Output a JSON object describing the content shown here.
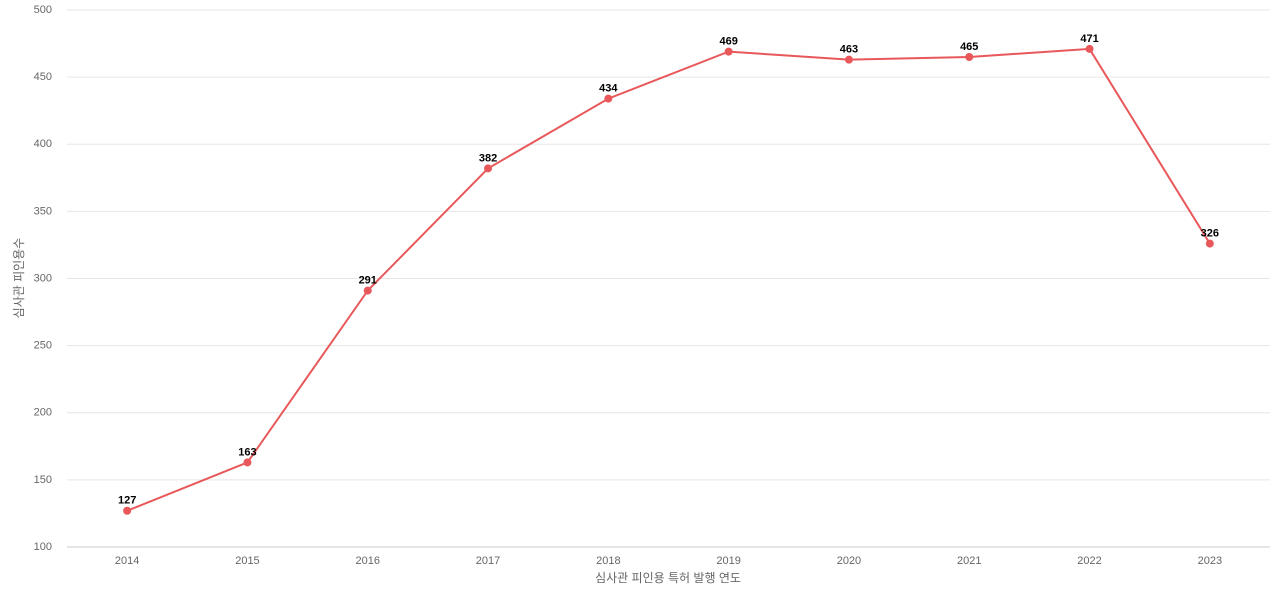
{
  "chart_data": {
    "type": "line",
    "x_label": "심사관 피인용 특허 발행 연도",
    "y_label": "심사관 피인용수",
    "categories": [
      "2014",
      "2015",
      "2016",
      "2017",
      "2018",
      "2019",
      "2020",
      "2021",
      "2022",
      "2023"
    ],
    "series": [
      {
        "name": "심사관 피인용수",
        "color": "#e8585a",
        "values": [
          127,
          163,
          291,
          382,
          434,
          469,
          463,
          465,
          471,
          326
        ]
      }
    ],
    "ylim": [
      100,
      500
    ],
    "yticks": [
      100,
      150,
      200,
      250,
      300,
      350,
      400,
      450,
      500
    ],
    "grid": true
  }
}
